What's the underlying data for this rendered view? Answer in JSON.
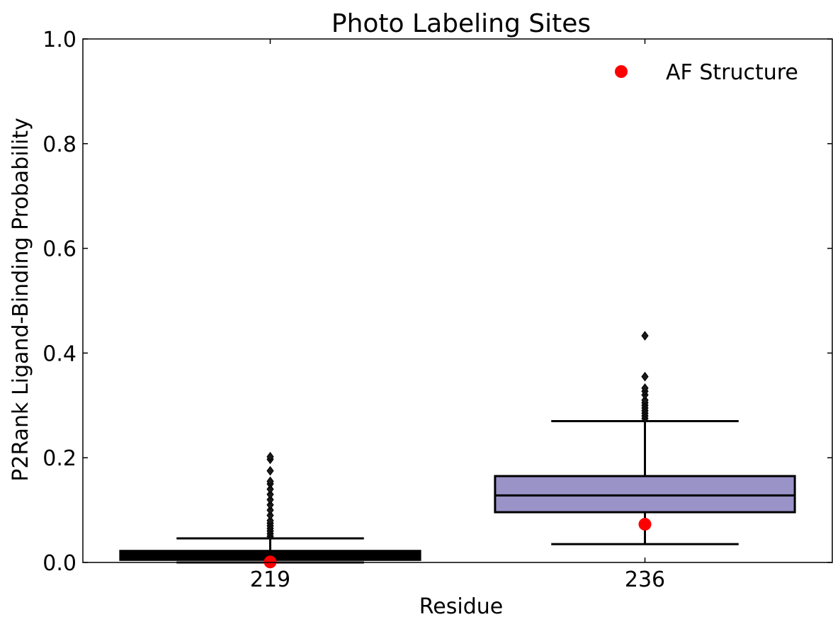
{
  "chart_data": {
    "type": "boxplot",
    "title": "Photo Labeling Sites",
    "xlabel": "Residue",
    "ylabel": "P2Rank Ligand-Binding Probability",
    "ylim": [
      0.0,
      1.0
    ],
    "yticks": [
      0.0,
      0.2,
      0.4,
      0.6,
      0.8,
      1.0
    ],
    "ytick_labels": [
      "0.0",
      "0.2",
      "0.4",
      "0.6",
      "0.8",
      "1.0"
    ],
    "categories": [
      "219",
      "236"
    ],
    "boxes": [
      {
        "category": "219",
        "whisker_low": 0.0,
        "q1": 0.005,
        "median": 0.012,
        "q3": 0.022,
        "whisker_high": 0.046,
        "fill": "#000000",
        "outliers": [
          0.05,
          0.055,
          0.06,
          0.065,
          0.07,
          0.075,
          0.08,
          0.09,
          0.1,
          0.11,
          0.12,
          0.13,
          0.14,
          0.15,
          0.155,
          0.175,
          0.197,
          0.202
        ]
      },
      {
        "category": "236",
        "whisker_low": 0.035,
        "q1": 0.096,
        "median": 0.128,
        "q3": 0.165,
        "whisker_high": 0.27,
        "fill": "#9a93c8",
        "outliers": [
          0.275,
          0.28,
          0.285,
          0.29,
          0.295,
          0.3,
          0.305,
          0.31,
          0.32,
          0.327,
          0.333,
          0.355,
          0.433
        ]
      }
    ],
    "af_structure": {
      "name": "AF Structure",
      "color": "#ff0000",
      "values": [
        0.001,
        0.073
      ]
    },
    "legend": {
      "position": "top-right",
      "entries": [
        "AF Structure"
      ]
    },
    "grid": false
  }
}
